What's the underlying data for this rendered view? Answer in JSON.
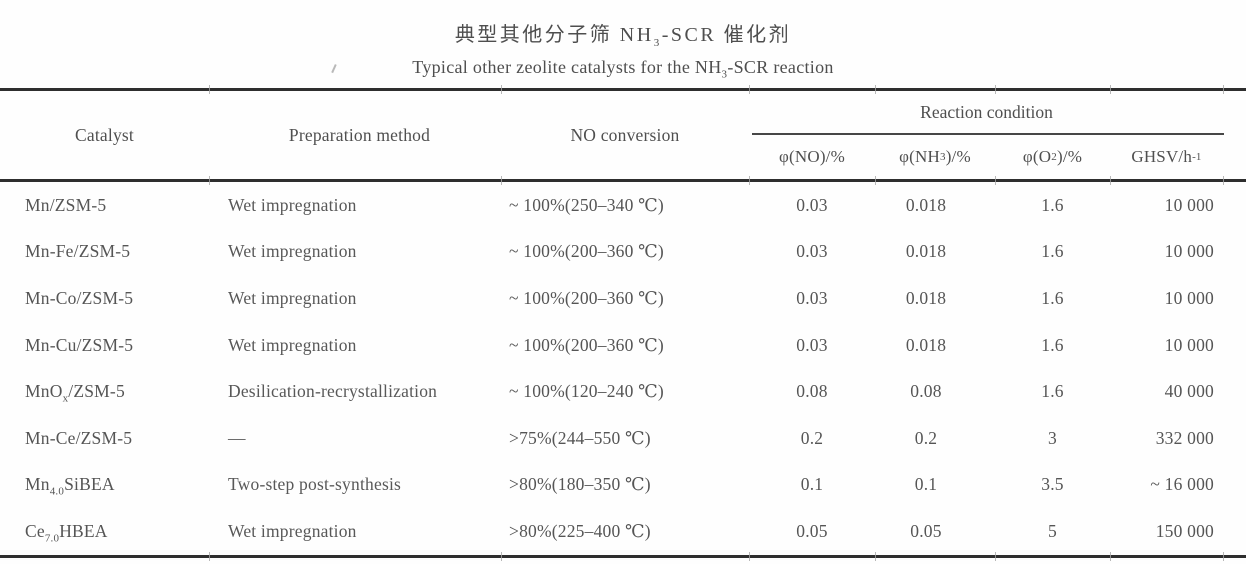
{
  "title": {
    "zh": "典型其他分子筛 NH_{3}-SCR 催化剂",
    "en": "Typical other zeolite catalysts for the NH_{3}-SCR reaction"
  },
  "table": {
    "headers": {
      "catalyst": "Catalyst",
      "preparation": "Preparation method",
      "no_conversion": "NO conversion",
      "reaction_condition": "Reaction condition",
      "phi_no": "φ(NO)/%",
      "phi_nh3": "φ(NH_{3})/%",
      "phi_o2": "φ(O_{2})/%",
      "ghsv": "GHSV/h^{-1}"
    },
    "rows": [
      {
        "catalyst": "Mn/ZSM-5",
        "preparation": "Wet impregnation",
        "conversion": "~ 100%(250–340 ℃)",
        "phi_no": "0.03",
        "phi_nh3": "0.018",
        "phi_o2": "1.6",
        "ghsv": "10 000"
      },
      {
        "catalyst": "Mn-Fe/ZSM-5",
        "preparation": "Wet impregnation",
        "conversion": "~ 100%(200–360 ℃)",
        "phi_no": "0.03",
        "phi_nh3": "0.018",
        "phi_o2": "1.6",
        "ghsv": "10 000"
      },
      {
        "catalyst": "Mn-Co/ZSM-5",
        "preparation": "Wet impregnation",
        "conversion": "~ 100%(200–360 ℃)",
        "phi_no": "0.03",
        "phi_nh3": "0.018",
        "phi_o2": "1.6",
        "ghsv": "10 000"
      },
      {
        "catalyst": "Mn-Cu/ZSM-5",
        "preparation": "Wet impregnation",
        "conversion": "~ 100%(200–360 ℃)",
        "phi_no": "0.03",
        "phi_nh3": "0.018",
        "phi_o2": "1.6",
        "ghsv": "10 000"
      },
      {
        "catalyst": "MnO_{x}/ZSM-5",
        "preparation": "Desilication-recrystallization",
        "conversion": "~ 100%(120–240 ℃)",
        "phi_no": "0.08",
        "phi_nh3": "0.08",
        "phi_o2": "1.6",
        "ghsv": "40 000"
      },
      {
        "catalyst": "Mn-Ce/ZSM-5",
        "preparation": "—",
        "conversion": ">75%(244–550 ℃)",
        "phi_no": "0.2",
        "phi_nh3": "0.2",
        "phi_o2": "3",
        "ghsv": "332 000"
      },
      {
        "catalyst": "Mn_{4.0}SiBEA",
        "preparation": "Two-step post-synthesis",
        "conversion": ">80%(180–350 ℃)",
        "phi_no": "0.1",
        "phi_nh3": "0.1",
        "phi_o2": "3.5",
        "ghsv": "~ 16 000"
      },
      {
        "catalyst": "Ce_{7.0}HBEA",
        "preparation": "Wet impregnation",
        "conversion": ">80%(225–400 ℃)",
        "phi_no": "0.05",
        "phi_nh3": "0.05",
        "phi_o2": "5",
        "ghsv": "150 000"
      }
    ]
  },
  "colors": {
    "text": "#545454",
    "rule": "#2e2e2e"
  }
}
